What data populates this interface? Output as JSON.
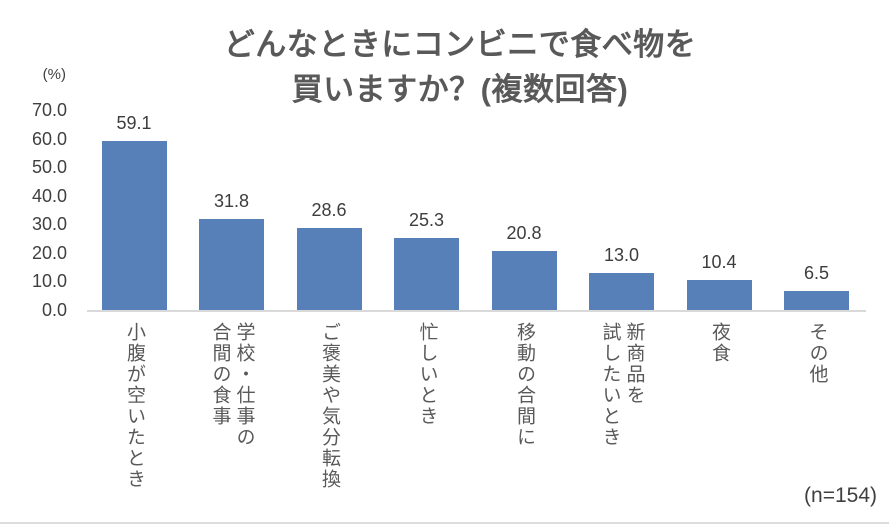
{
  "chart_data": {
    "type": "bar",
    "title": "どんなときにコンビニで食べ物を買いますか？(複数回答)",
    "title_lines": [
      "どんなときにコンビニで食べ物を",
      "買いますか？(複数回答)"
    ],
    "y_axis_unit": "(%)",
    "categories": [
      "小腹が空いたとき",
      "学校・仕事の\n合間の食事",
      "ご褒美や気分転換",
      "忙しいとき",
      "移動の合間に",
      "新商品を\n試したいとき",
      "夜食",
      "その他"
    ],
    "values": [
      59.1,
      31.8,
      28.6,
      25.3,
      20.8,
      13.0,
      10.4,
      6.5
    ],
    "value_labels": [
      "59.1",
      "31.8",
      "28.6",
      "25.3",
      "20.8",
      "13.0",
      "10.4",
      "6.5"
    ],
    "y_ticks": [
      "70.0",
      "60.0",
      "50.0",
      "40.0",
      "30.0",
      "20.0",
      "10.0",
      "0.0"
    ],
    "ylim": [
      0,
      70
    ],
    "xlabel": "",
    "ylabel": "(%)",
    "grid": false,
    "legend": "none",
    "sample_size": "(n=154)",
    "colors": {
      "bar": "#5880B8",
      "axis_line": "#D9D9D9",
      "title_text": "#595959",
      "label_text": "#3D3D3D",
      "category_text": "#595959"
    }
  }
}
